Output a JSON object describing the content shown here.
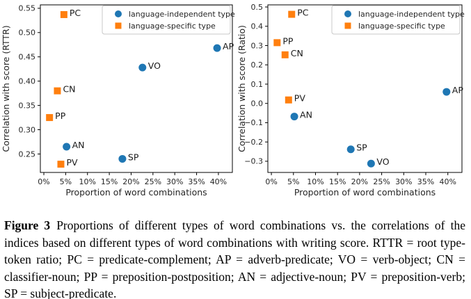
{
  "caption": {
    "label": "Figure 3",
    "text": "Proportions of different types of word combinations vs. the correlations of the indices based on different types of word combinations with writing score. RTTR = root type-token ratio; PC = predicate-complement; AP = adverb-predicate; VO = verb-object; CN = classifier-noun; PP = preposition-postposition; AN = adjective-noun; PV = preposition-verb; SP = subject-predicate.",
    "text_color": "#000000"
  },
  "colors": {
    "language_independent": "#1f77b4",
    "language_specific": "#ff7f0e",
    "tick_text": "#262626",
    "spine": "#000000",
    "legend_border": "#c8c8c8",
    "background": "#ffffff"
  },
  "series": [
    {
      "id": "independent",
      "label": "language-independent type",
      "marker": "circle",
      "color": "#1f77b4"
    },
    {
      "id": "specific",
      "label": "language-specific type",
      "marker": "square",
      "color": "#ff7f0e"
    }
  ],
  "chart_data": [
    {
      "type": "scatter",
      "title": "",
      "xlabel": "Proportion of word combinations",
      "ylabel": "Correlation with score (RTTR)",
      "xlim": [
        -0.8,
        43.2
      ],
      "ylim": [
        0.212,
        0.557
      ],
      "grid": false,
      "legend_position": "upper right",
      "xticks": [
        0,
        5,
        10,
        15,
        20,
        25,
        30,
        35,
        40
      ],
      "xtick_labels": [
        "0%",
        "5%",
        "10%",
        "15%",
        "20%",
        "25%",
        "30%",
        "35%",
        "40%"
      ],
      "yticks": [
        0.25,
        0.3,
        0.35,
        0.4,
        0.45,
        0.5,
        0.55
      ],
      "ytick_labels": [
        "0.25",
        "0.30",
        "0.35",
        "0.40",
        "0.45",
        "0.50",
        "0.55"
      ],
      "points": [
        {
          "label": "PC",
          "series": "specific",
          "x": 4.6,
          "y": 0.537
        },
        {
          "label": "CN",
          "series": "specific",
          "x": 3.1,
          "y": 0.38
        },
        {
          "label": "PP",
          "series": "specific",
          "x": 1.3,
          "y": 0.325
        },
        {
          "label": "PV",
          "series": "specific",
          "x": 3.9,
          "y": 0.229
        },
        {
          "label": "AP",
          "series": "independent",
          "x": 39.7,
          "y": 0.468
        },
        {
          "label": "VO",
          "series": "independent",
          "x": 22.6,
          "y": 0.428
        },
        {
          "label": "AN",
          "series": "independent",
          "x": 5.2,
          "y": 0.265
        },
        {
          "label": "SP",
          "series": "independent",
          "x": 18.0,
          "y": 0.24
        }
      ]
    },
    {
      "type": "scatter",
      "title": "",
      "xlabel": "Proportion of word combinations",
      "ylabel": "Correlation with score (Ratio)",
      "xlim": [
        -0.8,
        43.2
      ],
      "ylim": [
        -0.358,
        0.511
      ],
      "grid": false,
      "legend_position": "upper right",
      "xticks": [
        0,
        5,
        10,
        15,
        20,
        25,
        30,
        35,
        40
      ],
      "xtick_labels": [
        "0%",
        "5%",
        "10%",
        "15%",
        "20%",
        "25%",
        "30%",
        "35%",
        "40%"
      ],
      "yticks": [
        0.5,
        0.4,
        0.3,
        0.2,
        0.1,
        0.0,
        -0.1,
        -0.2,
        -0.3
      ],
      "ytick_labels": [
        "0.5",
        "0.4",
        "0.3",
        "0.2",
        "0.1",
        "0.0",
        "−0.1",
        "−0.2",
        "−0.3"
      ],
      "points": [
        {
          "label": "PC",
          "series": "specific",
          "x": 4.6,
          "y": 0.462
        },
        {
          "label": "PP",
          "series": "specific",
          "x": 1.3,
          "y": 0.315
        },
        {
          "label": "CN",
          "series": "specific",
          "x": 3.1,
          "y": 0.252
        },
        {
          "label": "PV",
          "series": "specific",
          "x": 3.9,
          "y": 0.018
        },
        {
          "label": "AP",
          "series": "independent",
          "x": 39.7,
          "y": 0.06
        },
        {
          "label": "AN",
          "series": "independent",
          "x": 5.2,
          "y": -0.068
        },
        {
          "label": "SP",
          "series": "independent",
          "x": 18.0,
          "y": -0.238
        },
        {
          "label": "VO",
          "series": "independent",
          "x": 22.6,
          "y": -0.312
        }
      ]
    }
  ]
}
